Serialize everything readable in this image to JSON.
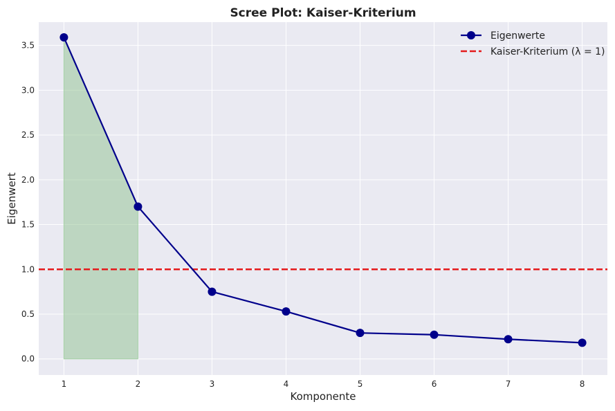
{
  "chart_data": {
    "type": "line",
    "title": "Scree Plot: Kaiser-Kriterium",
    "xlabel": "Komponente",
    "ylabel": "Eigenwert",
    "x": [
      1,
      2,
      3,
      4,
      5,
      6,
      7,
      8
    ],
    "xticks": [
      "1",
      "2",
      "3",
      "4",
      "5",
      "6",
      "7",
      "8"
    ],
    "yticks": [
      "0.0",
      "0.5",
      "1.0",
      "1.5",
      "2.0",
      "2.5",
      "3.0",
      "3.5"
    ],
    "ylim": [
      -0.18,
      3.76
    ],
    "xlim": [
      0.66,
      8.34
    ],
    "grid": true,
    "legend_position": "top-right",
    "series": [
      {
        "name": "Eigenwerte",
        "values": [
          3.59,
          1.7,
          0.75,
          0.53,
          0.29,
          0.27,
          0.22,
          0.18
        ],
        "color": "#00008b",
        "marker": "circle"
      }
    ],
    "reference_line": {
      "name": "Kaiser-Kriterium (λ = 1)",
      "y": 1.0,
      "color": "#e41a1c",
      "style": "dashed"
    },
    "shaded_region": {
      "x_from": 1,
      "x_to": 2,
      "color": "#90c290",
      "meaning": "components with eigenvalue above 1"
    }
  }
}
